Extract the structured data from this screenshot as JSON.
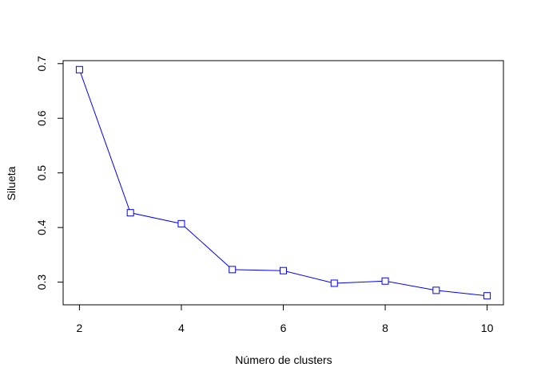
{
  "chart_data": {
    "type": "line",
    "title": "",
    "xlabel": "Número de clusters",
    "ylabel": "Silueta",
    "x": [
      2,
      3,
      4,
      5,
      6,
      7,
      8,
      9,
      10
    ],
    "series": [
      {
        "values": [
          0.689,
          0.427,
          0.407,
          0.323,
          0.321,
          0.298,
          0.302,
          0.285,
          0.275
        ]
      }
    ],
    "xlim": [
      1.68,
      10.32
    ],
    "ylim": [
      0.2585,
      0.7055
    ],
    "xticks": [
      2,
      4,
      6,
      8,
      10
    ],
    "yticks": [
      0.3,
      0.4,
      0.5,
      0.6,
      0.7
    ],
    "xtick_labels": [
      "2",
      "4",
      "6",
      "8",
      "10"
    ],
    "ytick_labels": [
      "0.3",
      "0.4",
      "0.5",
      "0.6",
      "0.7"
    ],
    "marker": "square-open",
    "line_color": "#0000ff",
    "grid": false,
    "legend": "none"
  }
}
